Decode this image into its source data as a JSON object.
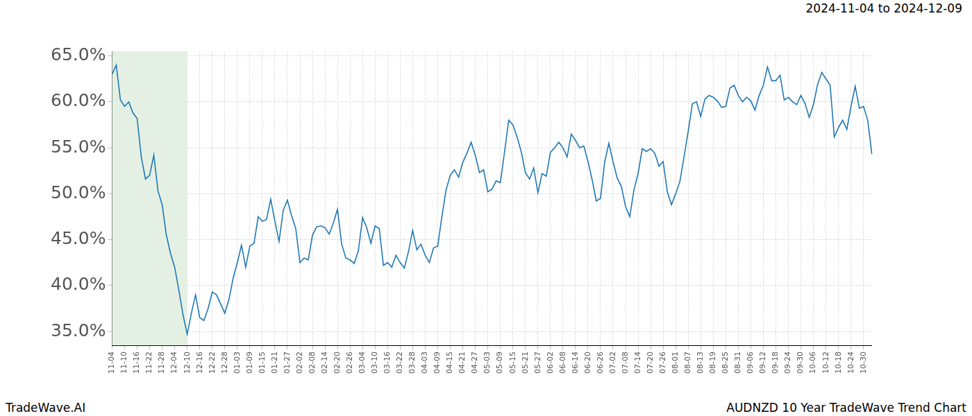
{
  "chart_data": {
    "type": "line",
    "title": "2024-11-04 to 2024-12-09",
    "footer_left": "TradeWave.AI",
    "footer_right": "AUDNZD 10 Year TradeWave Trend Chart",
    "categories": [
      "11-04",
      null,
      null,
      "11-10",
      null,
      null,
      "11-16",
      null,
      null,
      "11-22",
      null,
      null,
      "11-28",
      null,
      null,
      "12-04",
      null,
      null,
      "12-10",
      null,
      null,
      "12-16",
      null,
      null,
      "12-22",
      null,
      null,
      "12-28",
      null,
      null,
      "01-03",
      null,
      null,
      "01-09",
      null,
      null,
      "01-15",
      null,
      null,
      "01-21",
      null,
      null,
      "01-27",
      null,
      null,
      "02-02",
      null,
      null,
      "02-08",
      null,
      null,
      "02-14",
      null,
      null,
      "02-20",
      null,
      null,
      "02-26",
      null,
      null,
      "03-04",
      null,
      null,
      "03-10",
      null,
      null,
      "03-16",
      null,
      null,
      "03-22",
      null,
      null,
      "03-28",
      null,
      null,
      "04-03",
      null,
      null,
      "04-09",
      null,
      null,
      "04-15",
      null,
      null,
      "04-21",
      null,
      null,
      "04-27",
      null,
      null,
      "05-03",
      null,
      null,
      "05-09",
      null,
      null,
      "05-15",
      null,
      null,
      "05-21",
      null,
      null,
      "05-27",
      null,
      null,
      "06-02",
      null,
      null,
      "06-08",
      null,
      null,
      "06-14",
      null,
      null,
      "06-20",
      null,
      null,
      "06-26",
      null,
      null,
      "07-02",
      null,
      null,
      "07-08",
      null,
      null,
      "07-14",
      null,
      null,
      "07-20",
      null,
      null,
      "07-26",
      null,
      null,
      "08-01",
      null,
      null,
      "08-07",
      null,
      null,
      "08-13",
      null,
      null,
      "08-19",
      null,
      null,
      "08-25",
      null,
      null,
      "08-31",
      null,
      null,
      "09-06",
      null,
      null,
      "09-12",
      null,
      null,
      "09-18",
      null,
      null,
      "09-24",
      null,
      null,
      "09-30",
      null,
      null,
      "10-06",
      null,
      null,
      "10-12",
      null,
      null,
      "10-18",
      null,
      null,
      "10-24",
      null,
      null,
      "10-30",
      null,
      null
    ],
    "values": [
      63.0,
      64.0,
      60.2,
      59.5,
      60.0,
      58.8,
      58.2,
      54.0,
      51.6,
      52.0,
      54.2,
      50.3,
      48.8,
      45.5,
      43.5,
      42.0,
      39.5,
      36.8,
      34.7,
      37.0,
      39.0,
      36.5,
      36.2,
      37.5,
      39.3,
      39.0,
      38.0,
      37.0,
      38.5,
      40.8,
      42.5,
      44.4,
      42.0,
      44.3,
      44.6,
      47.5,
      47.0,
      47.2,
      49.4,
      47.0,
      44.8,
      48.2,
      49.3,
      47.6,
      46.2,
      42.5,
      43.0,
      42.8,
      45.5,
      46.4,
      46.5,
      46.3,
      45.6,
      46.8,
      48.3,
      44.5,
      43.0,
      42.8,
      42.4,
      43.8,
      47.4,
      46.3,
      44.6,
      46.5,
      46.2,
      42.2,
      42.5,
      42.0,
      43.3,
      42.5,
      41.9,
      43.7,
      46.0,
      43.9,
      44.5,
      43.3,
      42.5,
      44.1,
      44.3,
      47.5,
      50.4,
      52.0,
      52.6,
      51.8,
      53.4,
      54.4,
      55.6,
      54.2,
      52.3,
      52.6,
      50.2,
      50.5,
      51.4,
      51.2,
      54.5,
      58.0,
      57.5,
      56.2,
      54.6,
      52.3,
      51.6,
      52.8,
      50.1,
      52.2,
      51.9,
      54.5,
      55.0,
      55.6,
      55.0,
      54.0,
      56.5,
      55.8,
      55.0,
      55.2,
      53.5,
      51.5,
      49.2,
      49.5,
      53.5,
      55.5,
      53.5,
      51.7,
      50.8,
      48.6,
      47.5,
      50.4,
      52.2,
      54.9,
      54.6,
      54.9,
      54.4,
      53.0,
      53.5,
      50.2,
      48.8,
      50.0,
      51.3,
      54.0,
      56.8,
      59.8,
      60.0,
      58.4,
      60.3,
      60.7,
      60.5,
      60.1,
      59.4,
      59.5,
      61.5,
      61.8,
      60.7,
      60.0,
      60.5,
      60.1,
      59.1,
      60.7,
      61.8,
      63.8,
      62.3,
      62.3,
      62.9,
      60.2,
      60.5,
      60.0,
      59.7,
      60.7,
      59.8,
      58.3,
      59.7,
      61.9,
      63.2,
      62.5,
      61.8,
      56.2,
      57.2,
      58.0,
      57.0,
      59.5,
      61.7,
      59.3,
      59.5,
      58.0,
      54.3
    ],
    "color": "#1f77b4",
    "highlight": {
      "from": "11-04",
      "to": "12-10",
      "color": "#e3f0e3"
    },
    "ylim": [
      33.5,
      65.5
    ],
    "yticks": [
      {
        "value": 35,
        "label": "35.0%"
      },
      {
        "value": 40,
        "label": "40.0%"
      },
      {
        "value": 45,
        "label": "45.0%"
      },
      {
        "value": 50,
        "label": "50.0%"
      },
      {
        "value": 55,
        "label": "55.0%"
      },
      {
        "value": 60,
        "label": "60.0%"
      },
      {
        "value": 65,
        "label": "65.0%"
      }
    ],
    "grid": true
  }
}
